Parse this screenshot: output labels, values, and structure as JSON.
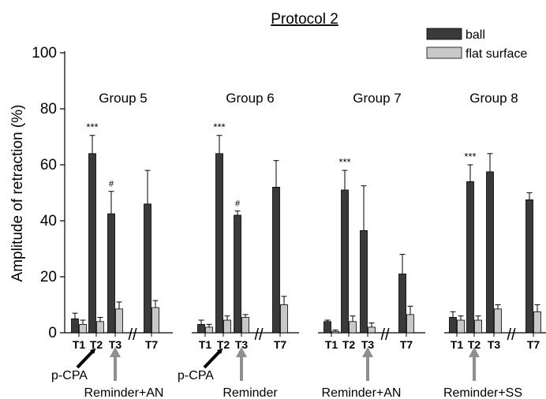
{
  "chart_data": {
    "type": "bar",
    "title": "Protocol 2",
    "ylabel": "Amplitude of retraction (%)",
    "ylim": [
      0,
      100
    ],
    "yticks": [
      0,
      20,
      40,
      60,
      80,
      100
    ],
    "legend": {
      "placement": "top-right",
      "entries": [
        {
          "name": "ball",
          "color": "#3a3a3a"
        },
        {
          "name": "flat surface",
          "color": "#c8c8c8"
        }
      ]
    },
    "categories": [
      "T1",
      "T2",
      "T3",
      "T7"
    ],
    "groups": [
      {
        "label": "Group 5",
        "series": [
          {
            "name": "ball",
            "values": [
              5,
              64,
              42.5,
              46
            ],
            "errors": [
              2,
              6.5,
              8,
              12
            ]
          },
          {
            "name": "flat surface",
            "values": [
              3,
              4,
              8.5,
              9
            ],
            "errors": [
              1.5,
              1.5,
              2.5,
              2.5
            ]
          }
        ],
        "annotations": [
          {
            "category": "T2",
            "text": "***"
          },
          {
            "category": "T3",
            "text": "#"
          }
        ],
        "arrows": [
          {
            "category": "T2",
            "text": "p-CPA",
            "style": "black"
          },
          {
            "category": "T3",
            "text": "Reminder+AN",
            "style": "gray"
          }
        ]
      },
      {
        "label": "Group 6",
        "series": [
          {
            "name": "ball",
            "values": [
              3,
              64,
              42,
              52
            ],
            "errors": [
              1.5,
              6.5,
              1.5,
              9.5
            ]
          },
          {
            "name": "flat surface",
            "values": [
              2,
              4.5,
              5.5,
              10
            ],
            "errors": [
              1,
              1.5,
              1,
              3
            ]
          }
        ],
        "annotations": [
          {
            "category": "T2",
            "text": "***"
          },
          {
            "category": "T3",
            "text": "#"
          }
        ],
        "arrows": [
          {
            "category": "T2",
            "text": "p-CPA",
            "style": "black"
          },
          {
            "category": "T3",
            "text": "Reminder",
            "style": "gray"
          }
        ]
      },
      {
        "label": "Group 7",
        "series": [
          {
            "name": "ball",
            "values": [
              4,
              51,
              36.5,
              21
            ],
            "errors": [
              0.5,
              7,
              16,
              7
            ]
          },
          {
            "name": "flat surface",
            "values": [
              0.5,
              4,
              2,
              6.5
            ],
            "errors": [
              0.5,
              2,
              1.5,
              3
            ]
          }
        ],
        "annotations": [
          {
            "category": "T2",
            "text": "***"
          }
        ],
        "arrows": [
          {
            "category": "T3",
            "text": "Reminder+AN",
            "style": "gray"
          }
        ]
      },
      {
        "label": "Group 8",
        "series": [
          {
            "name": "ball",
            "values": [
              5.5,
              54,
              57.5,
              47.5
            ],
            "errors": [
              2,
              6,
              6.5,
              2.5
            ]
          },
          {
            "name": "flat surface",
            "values": [
              4.5,
              4.5,
              8.5,
              7.5
            ],
            "errors": [
              1.5,
              1.5,
              1.5,
              2.5
            ]
          }
        ],
        "annotations": [
          {
            "category": "T2",
            "text": "***"
          }
        ],
        "arrows": [
          {
            "category": "T2",
            "text": "Reminder+SS",
            "style": "gray"
          }
        ]
      }
    ],
    "axis_break_marker": "//"
  }
}
